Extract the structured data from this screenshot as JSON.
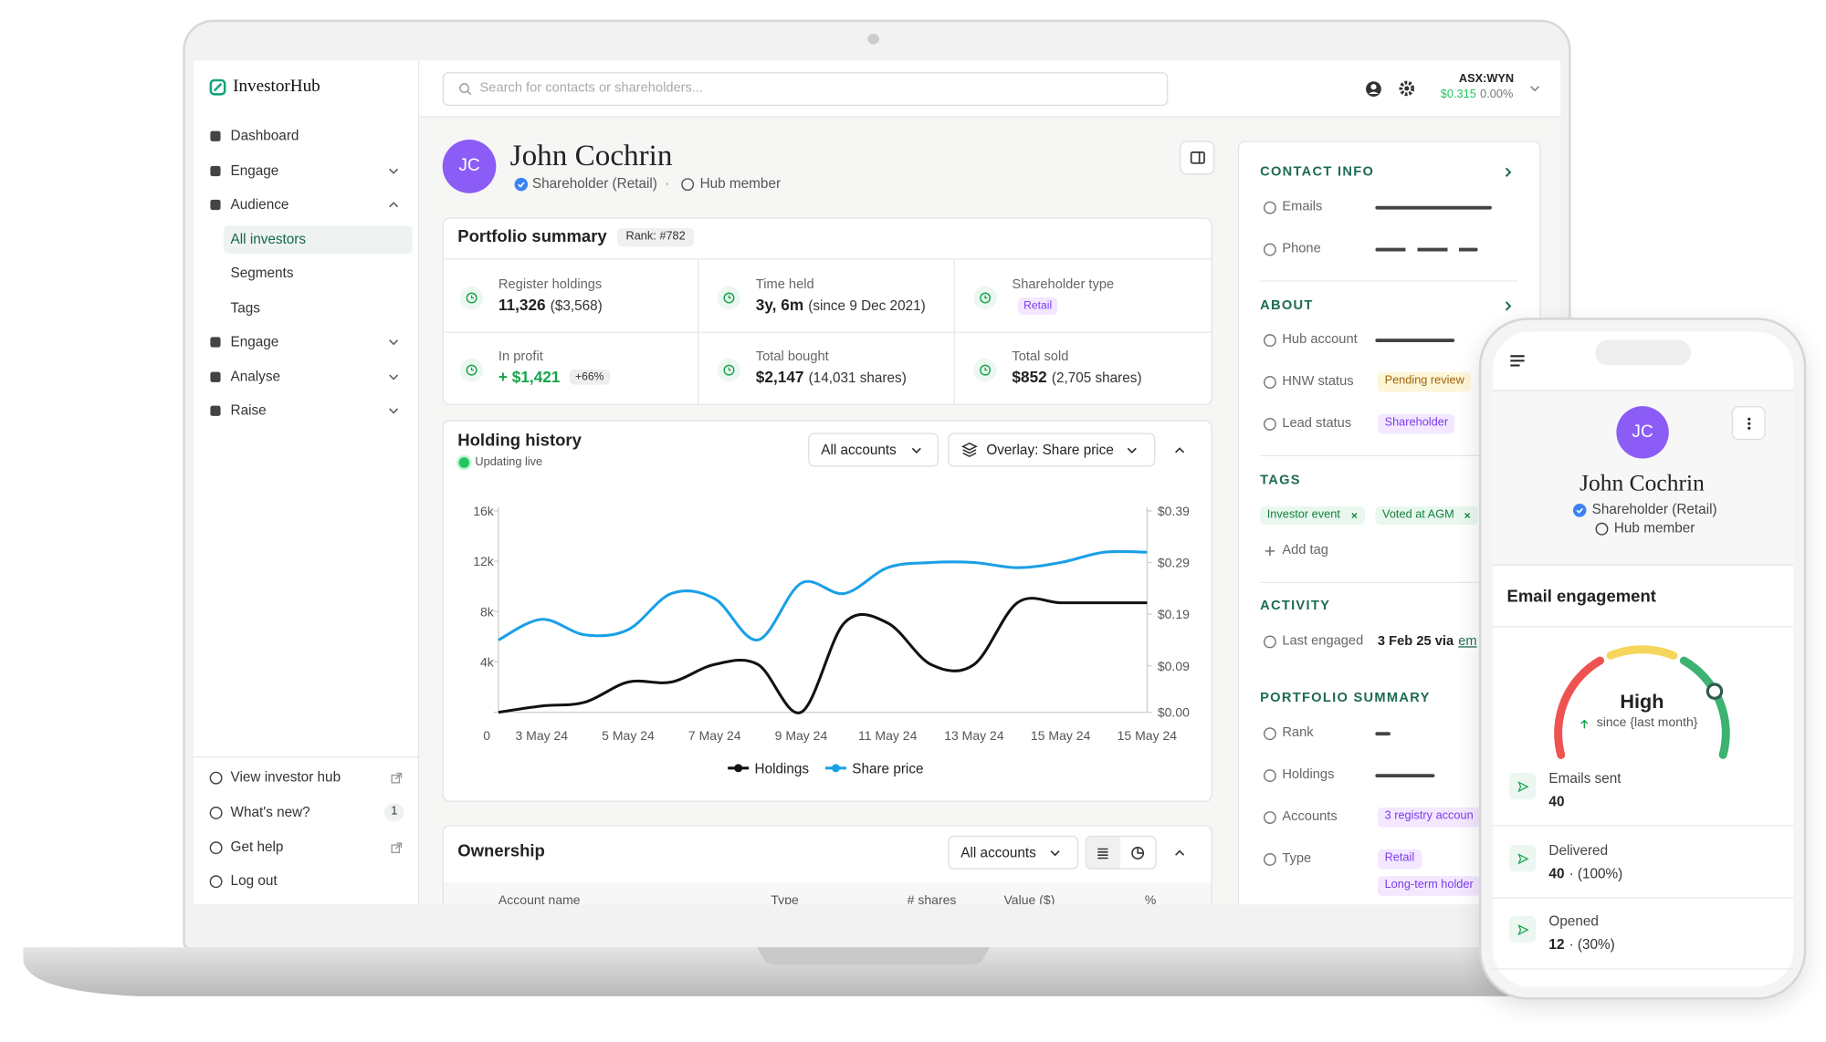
{
  "sidebar": {
    "logo": "InvestorHub",
    "nav": [
      "Dashboard",
      "Engage",
      "Audience",
      "All investors",
      "Segments",
      "Tags",
      "Engage",
      "Analyse",
      "Raise"
    ],
    "footer": [
      "View investor hub",
      "What's new?",
      "Get help",
      "Log out"
    ],
    "badge": "1"
  },
  "topbar": {
    "search": "Search for contacts or shareholders...",
    "ticker": "ASX:WYN",
    "price": "$0.315",
    "change": "0.00%"
  },
  "profile": {
    "initials": "JC",
    "name": "John Cochrin",
    "type": "Shareholder (Retail)",
    "separator": "·",
    "hub": "Hub member"
  },
  "portfolio": {
    "title": "Portfolio summary",
    "rank": "Rank: #782",
    "cells": [
      {
        "label": "Register holdings",
        "value": "11,326",
        "detail": "($3,568)"
      },
      {
        "label": "Time held",
        "value": "3y, 6m",
        "detail": "(since 9 Dec 2021)"
      },
      {
        "label": "Shareholder type",
        "badge": "Retail"
      },
      {
        "label": "In profit",
        "value": "+ $1,421",
        "badge": "+66%"
      },
      {
        "label": "Total bought",
        "value": "$2,147",
        "detail": "(14,031 shares)"
      },
      {
        "label": "Total sold",
        "value": "$852",
        "detail": "(2,705 shares)"
      }
    ]
  },
  "holding": {
    "title": "Holding history",
    "status": "Updating live",
    "accounts": "All accounts",
    "overlay": "Overlay: Share price"
  },
  "chart_data": {
    "type": "line",
    "categories": [
      null,
      "3 May 24",
      null,
      "5 May 24",
      null,
      "7 May 24",
      null,
      "9 May 24",
      null,
      "11 May 24",
      null,
      "13 May 24",
      null,
      "15 May 24",
      null,
      "15 May 24"
    ],
    "series": [
      {
        "name": "Holdings",
        "color": "#111111",
        "values": [
          0,
          500,
          800,
          2400,
          2400,
          3800,
          3800,
          0,
          7100,
          7100,
          3800,
          3800,
          8700,
          8700,
          8700,
          8700
        ]
      },
      {
        "name": "Share price",
        "color": "#1aa0e6",
        "axis": "y2",
        "values": [
          0.14,
          0.18,
          0.15,
          0.16,
          0.23,
          0.22,
          0.14,
          0.25,
          0.23,
          0.28,
          0.29,
          0.29,
          0.28,
          0.29,
          0.31,
          0.31
        ]
      }
    ],
    "ylim": [
      0,
      16000
    ],
    "yticks": [
      0,
      {
        "value": 4000,
        "label": "4k"
      },
      {
        "value": 8000,
        "label": "8k"
      },
      {
        "value": 12000,
        "label": "12k"
      },
      {
        "value": 16000,
        "label": "16k"
      }
    ],
    "y2lim": [
      0,
      0.39
    ],
    "y2ticks": [
      {
        "value": 0,
        "label": "$0.00"
      },
      {
        "value": 0.09,
        "label": "$0.09"
      },
      {
        "value": 0.19,
        "label": "$0.19"
      },
      {
        "value": 0.29,
        "label": "$0.29"
      },
      {
        "value": 0.39,
        "label": "$0.39"
      }
    ],
    "legend": "bottom"
  },
  "ownership": {
    "title": "Ownership",
    "accounts": "All accounts",
    "columns": [
      "Account name",
      "Type",
      "# shares",
      "Value ($)",
      "%"
    ]
  },
  "side": {
    "contact": {
      "title": "CONTACT INFO",
      "rows": [
        "Emails",
        "Phone"
      ]
    },
    "about": {
      "title": "ABOUT",
      "rows": [
        {
          "label": "Hub account"
        },
        {
          "label": "HNW status",
          "badge": "Pending review"
        },
        {
          "label": "Lead status",
          "badge": "Shareholder"
        }
      ]
    },
    "tags": {
      "title": "TAGS",
      "items": [
        "Investor event",
        "Voted at AGM"
      ],
      "add": "Add tag"
    },
    "activity": {
      "title": "ACTIVITY",
      "label": "Last engaged",
      "value": "3 Feb 25 via",
      "link": "em"
    },
    "summary": {
      "title": "PORTFOLIO SUMMARY",
      "rows": [
        {
          "label": "Rank"
        },
        {
          "label": "Holdings"
        },
        {
          "label": "Accounts",
          "badge": "3 registry accoun"
        },
        {
          "label": "Type",
          "badges": [
            "Retail",
            "Long-term holder"
          ]
        }
      ]
    }
  },
  "phone": {
    "initials": "JC",
    "name": "John Cochrin",
    "type": "Shareholder (Retail)",
    "hub": "Hub member",
    "card_title": "Email engagement",
    "level": "High",
    "since": "since {last month}",
    "stats": [
      {
        "label": "Emails sent",
        "value": "40"
      },
      {
        "label": "Delivered",
        "value": "40",
        "detail": "· (100%)"
      },
      {
        "label": "Opened",
        "value": "12",
        "detail": "· (30%)"
      }
    ]
  }
}
